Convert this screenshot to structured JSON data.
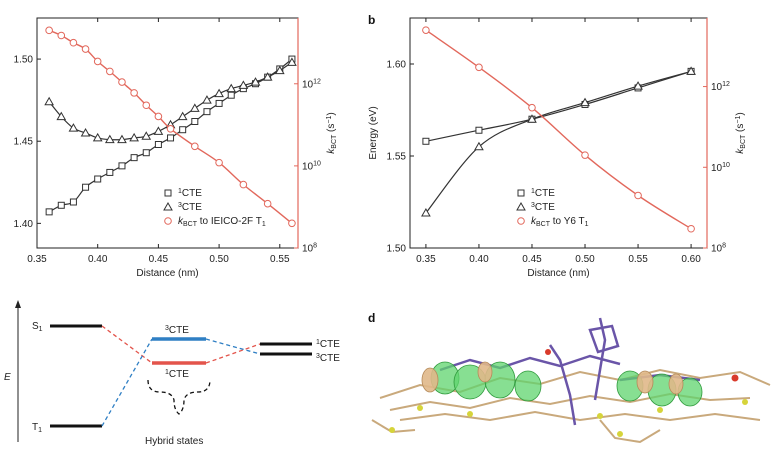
{
  "panel_labels": {
    "b": "b",
    "d": "d"
  },
  "chart_data": [
    {
      "type": "line",
      "xlabel": "Distance (nm)",
      "ylabel": "",
      "ylabel_right": "k_BCT (s⁻¹)",
      "xlim": [
        0.35,
        0.565
      ],
      "ylim": [
        1.385,
        1.525
      ],
      "xticks": [
        "0.35",
        "0.40",
        "0.45",
        "0.50",
        "0.55"
      ],
      "yticks": [
        "1.40",
        "1.45",
        "1.50"
      ],
      "right_axis": {
        "log": true,
        "lim": [
          100000000.0,
          40000000000000.0
        ],
        "tick_bases": [
          "10",
          "10",
          "10"
        ],
        "tick_exps": [
          "8",
          "10",
          "12"
        ]
      },
      "legend_position": "lower-center",
      "series": [
        {
          "name": "1CTE",
          "name_sup": "1",
          "name_base": "CTE",
          "marker": "square",
          "color": "#333333",
          "x": [
            0.36,
            0.37,
            0.38,
            0.39,
            0.4,
            0.41,
            0.42,
            0.43,
            0.44,
            0.45,
            0.46,
            0.47,
            0.48,
            0.49,
            0.5,
            0.51,
            0.52,
            0.53,
            0.54,
            0.55,
            0.56
          ],
          "y": [
            1.407,
            1.411,
            1.413,
            1.422,
            1.427,
            1.431,
            1.435,
            1.44,
            1.443,
            1.448,
            1.452,
            1.457,
            1.462,
            1.468,
            1.473,
            1.478,
            1.482,
            1.485,
            1.489,
            1.494,
            1.5
          ]
        },
        {
          "name": "3CTE",
          "name_sup": "3",
          "name_base": "CTE",
          "marker": "triangle",
          "color": "#333333",
          "x": [
            0.36,
            0.37,
            0.38,
            0.39,
            0.4,
            0.41,
            0.42,
            0.43,
            0.44,
            0.45,
            0.46,
            0.47,
            0.48,
            0.49,
            0.5,
            0.51,
            0.52,
            0.53,
            0.54,
            0.55,
            0.56
          ],
          "y": [
            1.474,
            1.465,
            1.458,
            1.455,
            1.452,
            1.451,
            1.451,
            1.452,
            1.453,
            1.456,
            1.46,
            1.465,
            1.47,
            1.475,
            1.479,
            1.482,
            1.484,
            1.486,
            1.489,
            1.493,
            1.498
          ]
        },
        {
          "name": "kBCT to IEICO-2F T1",
          "name_k": "k",
          "name_sub": "BCT",
          "name_mid": " to IEICO-2F T",
          "name_end": "1",
          "marker": "circle",
          "color": "#e2685c",
          "axis": "right",
          "x": [
            0.36,
            0.37,
            0.38,
            0.39,
            0.4,
            0.41,
            0.42,
            0.43,
            0.44,
            0.45,
            0.46,
            0.48,
            0.5,
            0.52,
            0.54,
            0.56
          ],
          "y": [
            20000000000000.0,
            15000000000000.0,
            10000000000000.0,
            7000000000000.0,
            3500000000000.0,
            2000000000000.0,
            1100000000000.0,
            600000000000.0,
            300000000000.0,
            160000000000.0,
            80000000000.0,
            30000000000.0,
            12000000000.0,
            3500000000.0,
            1200000000.0,
            400000000.0
          ]
        }
      ]
    },
    {
      "type": "line",
      "xlabel": "Distance (nm)",
      "ylabel": "Energy (eV)",
      "ylabel_right": "k_BCT (s⁻¹)",
      "xlim": [
        0.335,
        0.615
      ],
      "ylim": [
        1.5,
        1.625
      ],
      "xticks": [
        "0.35",
        "0.40",
        "0.45",
        "0.50",
        "0.55",
        "0.60"
      ],
      "yticks": [
        "1.50",
        "1.55",
        "1.60"
      ],
      "right_axis": {
        "log": true,
        "lim": [
          100000000.0,
          50000000000000.0
        ],
        "tick_bases": [
          "10",
          "10",
          "10"
        ],
        "tick_exps": [
          "8",
          "10",
          "12"
        ]
      },
      "legend_position": "lower-center",
      "series": [
        {
          "name": "1CTE",
          "name_sup": "1",
          "name_base": "CTE",
          "marker": "square",
          "color": "#333333",
          "x": [
            0.35,
            0.4,
            0.45,
            0.5,
            0.55,
            0.6
          ],
          "y": [
            1.558,
            1.564,
            1.57,
            1.578,
            1.587,
            1.596
          ]
        },
        {
          "name": "3CTE",
          "name_sup": "3",
          "name_base": "CTE",
          "marker": "triangle",
          "color": "#333333",
          "x": [
            0.35,
            0.4,
            0.45,
            0.5,
            0.55,
            0.6
          ],
          "y": [
            1.519,
            1.555,
            1.57,
            1.579,
            1.588,
            1.596
          ]
        },
        {
          "name": "kBCT to Y6 T1",
          "name_k": "k",
          "name_sub": "BCT",
          "name_mid": " to Y6 T",
          "name_end": "1",
          "marker": "circle",
          "color": "#e2685c",
          "axis": "right",
          "x": [
            0.35,
            0.4,
            0.45,
            0.5,
            0.55,
            0.6
          ],
          "y": [
            25000000000000.0,
            3000000000000.0,
            300000000000.0,
            20000000000.0,
            2000000000.0,
            300000000.0
          ]
        }
      ]
    }
  ],
  "diagram": {
    "axis_label": "E",
    "s1_base": "S",
    "s1_sub": "1",
    "t1_base": "T",
    "t1_sub": "1",
    "mid_top_sup": "3",
    "mid_top_base": "CTE",
    "mid_bot_sup": "1",
    "mid_bot_base": "CTE",
    "right_top_sup": "1",
    "right_top_base": "CTE",
    "right_bot_sup": "3",
    "right_bot_base": "CTE",
    "brace_label": "Hybrid states"
  }
}
